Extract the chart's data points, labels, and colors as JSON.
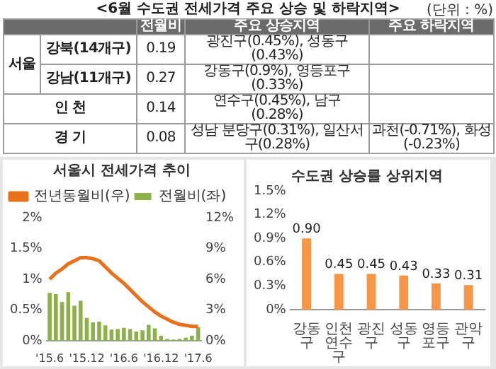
{
  "chart_data": [
    {
      "type": "other",
      "title": "<6월 수도권 전세가격 주요 상승 및 하락지역>",
      "annotations": [
        "(단위 : %)",
        "전월비",
        "주요 상승지역",
        "주요 하락지역",
        "서울",
        "강북(14개구)",
        "0.19",
        "광진구(0.45%), 성동구(0.43%)",
        "강남(11개구)",
        "0.27",
        "강동구(0.9%), 영등포구(0.33%)",
        "인 천",
        "0.14",
        "연수구(0.45%), 남구(0.28%)",
        "경 기",
        "0.08",
        "성남 분당구(0.31%), 일산서구(0.28%)",
        "과천(-0.71%), 화성(-0.23%)"
      ]
    },
    {
      "type": "bar",
      "title": "서울시 전세가격 추이",
      "categories": [
        "'15.6",
        null,
        null,
        null,
        null,
        null,
        "'15.12",
        null,
        null,
        null,
        null,
        null,
        "'16.6",
        null,
        null,
        null,
        null,
        null,
        "'16.12",
        null,
        null,
        null,
        null,
        null,
        "'17.6"
      ],
      "series": [
        {
          "name": "전월비(좌)",
          "type": "bar",
          "color": "#8db04a",
          "values": [
            0.78,
            0.76,
            0.63,
            0.79,
            0.57,
            0.65,
            0.37,
            0.3,
            0.31,
            0.25,
            0.18,
            0.19,
            0.21,
            0.19,
            0.15,
            0.17,
            0.26,
            0.2,
            0.08,
            0.03,
            0.02,
            0.03,
            0.05,
            0.08,
            0.22
          ]
        },
        {
          "name": "전년동월비(우)",
          "type": "line",
          "axis": "y2",
          "color": "#e8711c",
          "values": [
            6.0,
            6.6,
            7.0,
            7.5,
            7.8,
            8.1,
            8.1,
            8.0,
            7.8,
            7.2,
            6.6,
            6.1,
            5.6,
            5.0,
            4.4,
            3.8,
            3.3,
            2.8,
            2.4,
            2.1,
            1.8,
            1.6,
            1.5,
            1.4,
            1.4
          ]
        }
      ],
      "ylim": [
        0,
        2
      ],
      "yticks": [
        {
          "value": 0,
          "label": "0%"
        },
        {
          "value": 0.5,
          "label": "0.5%"
        },
        {
          "value": 1,
          "label": "1%"
        },
        {
          "value": 1.5,
          "label": "1.5%"
        },
        {
          "value": 2,
          "label": "2%"
        }
      ],
      "y2lim": [
        0,
        12
      ],
      "y2ticks": [
        {
          "value": 0,
          "label": "0%"
        },
        {
          "value": 3,
          "label": "3%"
        },
        {
          "value": 6,
          "label": "6%"
        },
        {
          "value": 9,
          "label": "9%"
        },
        {
          "value": 12,
          "label": "12%"
        }
      ],
      "legend": "top left",
      "marker": "none"
    },
    {
      "type": "bar",
      "title": "수도권 상승률 상위지역",
      "categories": [
        "강동구",
        "인천 연수구",
        "광진구",
        "성동구",
        "영등포구",
        "관악구"
      ],
      "values": [
        0.9,
        0.45,
        0.45,
        0.43,
        0.33,
        0.31
      ],
      "color": "#f79646",
      "value_labels": [
        "0.90",
        "0.45",
        "0.45",
        "0.43",
        "0.33",
        "0.31"
      ],
      "ylim": [
        0,
        1.5
      ],
      "yticks": [
        {
          "value": 0,
          "label": "0%"
        },
        {
          "value": 0.3,
          "label": "0.3%"
        },
        {
          "value": 0.6,
          "label": "0.6%"
        },
        {
          "value": 0.9,
          "label": "0.9%"
        },
        {
          "value": 1.2,
          "label": "1.2%"
        },
        {
          "value": 1.5,
          "label": "1.5%"
        }
      ]
    }
  ]
}
